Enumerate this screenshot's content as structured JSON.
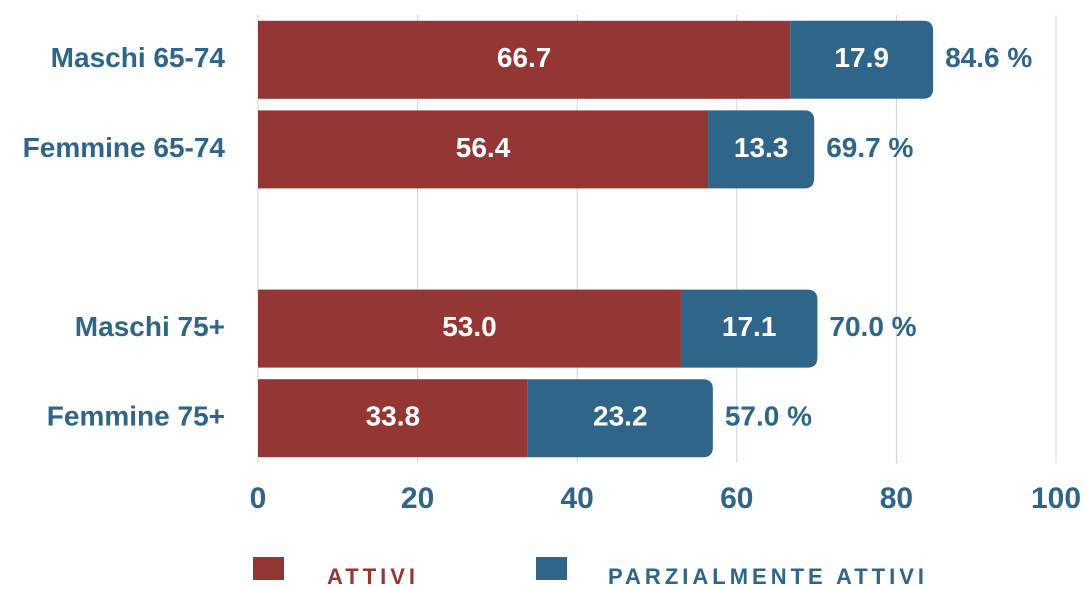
{
  "chart_data": {
    "type": "stacked-barh",
    "categories": [
      "Maschi 65-74",
      "Femmine 65-74",
      null,
      "Maschi 75+",
      "Femmine 75+"
    ],
    "series": [
      {
        "name": "ATTIVI",
        "color": "#943634",
        "values": [
          66.7,
          56.4,
          null,
          53.0,
          33.8
        ],
        "value_labels": [
          "66.7",
          "56.4",
          null,
          "53.0",
          "33.8"
        ]
      },
      {
        "name": "PARZIALMENTE ATTIVI",
        "color": "#2e6589",
        "values": [
          17.9,
          13.3,
          null,
          17.1,
          23.2
        ],
        "value_labels": [
          "17.9",
          "13.3",
          null,
          "17.1",
          "23.2"
        ]
      }
    ],
    "total_labels": [
      "84.6 %",
      "69.7 %",
      null,
      "70.0 %",
      "57.0 %"
    ],
    "xlim": [
      0,
      100
    ],
    "xticks": [
      0,
      20,
      40,
      60,
      80,
      100
    ],
    "grid": true
  }
}
